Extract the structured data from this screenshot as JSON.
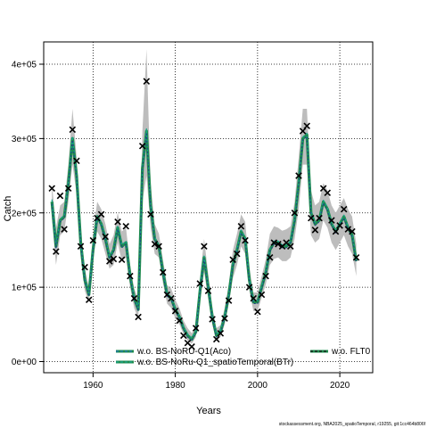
{
  "chart_data": {
    "type": "line",
    "xlabel": "Years",
    "ylabel": "Catch",
    "xlim": [
      1948,
      2028
    ],
    "ylim": [
      -15000,
      430000
    ],
    "x_ticks": [
      1960,
      1980,
      2000,
      2020
    ],
    "x_tick_labels": [
      "1960",
      "1980",
      "2000",
      "2020"
    ],
    "y_ticks": [
      0,
      100000,
      200000,
      300000,
      400000
    ],
    "y_tick_labels": [
      "0e+00",
      "1e+05",
      "2e+05",
      "3e+05",
      "4e+05"
    ],
    "grid": true,
    "legend_position": "bottom",
    "legend": [
      {
        "label": "w.o. BS-NoRU-Q1(Aco)",
        "color": "#1f77b4",
        "style": "dashed"
      },
      {
        "label": "w.o. BS-NoRu-Q1_spatioTemporal(BTr)",
        "color": "#17a589",
        "style": "dashed"
      },
      {
        "label": "w.o. FLT0",
        "color": "#111111",
        "style": "dashed"
      }
    ],
    "estimate_color": "#1e8a4c",
    "band_color": "#bdbdbd",
    "series": [
      {
        "name": "w.o. BS-NoRU-Q1(Aco)",
        "x": [
          1950,
          1951,
          1952,
          1953,
          1954,
          1955,
          1956,
          1957,
          1958,
          1959,
          1960,
          1961,
          1962,
          1963,
          1964,
          1965,
          1966,
          1967,
          1968,
          1969,
          1970,
          1971,
          1972,
          1973,
          1974,
          1975,
          1976,
          1977,
          1978,
          1979,
          1980,
          1981,
          1982,
          1983,
          1984,
          1985,
          1986,
          1987,
          1988,
          1989,
          1990,
          1991,
          1992,
          1993,
          1994,
          1995,
          1996,
          1997,
          1998,
          1999,
          2000,
          2001,
          2002,
          2003,
          2004,
          2005,
          2006,
          2007,
          2008,
          2009,
          2010,
          2011,
          2012,
          2013,
          2014,
          2015,
          2016,
          2017,
          2018,
          2019,
          2020,
          2021,
          2022,
          2023,
          2024
        ],
        "values": [
          215000,
          155000,
          190000,
          195000,
          240000,
          300000,
          250000,
          160000,
          110000,
          90000,
          150000,
          195000,
          185000,
          165000,
          140000,
          150000,
          180000,
          155000,
          160000,
          115000,
          85000,
          70000,
          260000,
          310000,
          210000,
          165000,
          155000,
          120000,
          90000,
          85000,
          70000,
          60000,
          45000,
          35000,
          30000,
          40000,
          95000,
          140000,
          100000,
          60000,
          35000,
          40000,
          60000,
          90000,
          130000,
          150000,
          175000,
          165000,
          110000,
          80000,
          80000,
          100000,
          120000,
          150000,
          160000,
          160000,
          155000,
          155000,
          160000,
          190000,
          240000,
          300000,
          305000,
          200000,
          185000,
          190000,
          215000,
          205000,
          185000,
          175000,
          185000,
          195000,
          180000,
          170000,
          135000
        ]
      },
      {
        "name": "w.o. BS-NoRu-Q1_spatioTemporal(BTr)",
        "x": [
          1950,
          1951,
          1952,
          1953,
          1954,
          1955,
          1956,
          1957,
          1958,
          1959,
          1960,
          1961,
          1962,
          1963,
          1964,
          1965,
          1966,
          1967,
          1968,
          1969,
          1970,
          1971,
          1972,
          1973,
          1974,
          1975,
          1976,
          1977,
          1978,
          1979,
          1980,
          1981,
          1982,
          1983,
          1984,
          1985,
          1986,
          1987,
          1988,
          1989,
          1990,
          1991,
          1992,
          1993,
          1994,
          1995,
          1996,
          1997,
          1998,
          1999,
          2000,
          2001,
          2002,
          2003,
          2004,
          2005,
          2006,
          2007,
          2008,
          2009,
          2010,
          2011,
          2012,
          2013,
          2014,
          2015,
          2016,
          2017,
          2018,
          2019,
          2020,
          2021,
          2022,
          2023,
          2024
        ],
        "values": [
          218000,
          158000,
          192000,
          197000,
          242000,
          303000,
          252000,
          162000,
          112000,
          92000,
          152000,
          197000,
          187000,
          167000,
          142000,
          152000,
          182000,
          157000,
          162000,
          117000,
          87000,
          72000,
          262000,
          313000,
          212000,
          167000,
          157000,
          122000,
          92000,
          87000,
          72000,
          62000,
          47000,
          37000,
          32000,
          42000,
          97000,
          142000,
          102000,
          62000,
          37000,
          42000,
          62000,
          92000,
          132000,
          152000,
          177000,
          167000,
          112000,
          82000,
          82000,
          102000,
          122000,
          152000,
          162000,
          162000,
          157000,
          157000,
          162000,
          192000,
          242000,
          302000,
          307000,
          202000,
          187000,
          192000,
          217000,
          207000,
          187000,
          177000,
          187000,
          197000,
          182000,
          172000,
          137000
        ]
      },
      {
        "name": "w.o. FLT0",
        "x": [
          1950,
          1951,
          1952,
          1953,
          1954,
          1955,
          1956,
          1957,
          1958,
          1959,
          1960,
          1961,
          1962,
          1963,
          1964,
          1965,
          1966,
          1967,
          1968,
          1969,
          1970,
          1971,
          1972,
          1973,
          1974,
          1975,
          1976,
          1977,
          1978,
          1979,
          1980,
          1981,
          1982,
          1983,
          1984,
          1985,
          1986,
          1987,
          1988,
          1989,
          1990,
          1991,
          1992,
          1993,
          1994,
          1995,
          1996,
          1997,
          1998,
          1999,
          2000,
          2001,
          2002,
          2003,
          2004,
          2005,
          2006,
          2007,
          2008,
          2009,
          2010,
          2011,
          2012,
          2013,
          2014,
          2015,
          2016,
          2017,
          2018,
          2019,
          2020,
          2021,
          2022,
          2023,
          2024
        ],
        "values": [
          212000,
          152000,
          188000,
          193000,
          238000,
          298000,
          248000,
          158000,
          108000,
          88000,
          148000,
          193000,
          183000,
          163000,
          138000,
          148000,
          178000,
          153000,
          158000,
          113000,
          83000,
          68000,
          258000,
          308000,
          208000,
          163000,
          153000,
          118000,
          88000,
          83000,
          68000,
          58000,
          43000,
          33000,
          28000,
          38000,
          93000,
          138000,
          98000,
          58000,
          33000,
          38000,
          58000,
          88000,
          128000,
          148000,
          173000,
          163000,
          108000,
          78000,
          78000,
          98000,
          118000,
          148000,
          158000,
          158000,
          153000,
          153000,
          158000,
          188000,
          238000,
          298000,
          303000,
          198000,
          183000,
          188000,
          213000,
          203000,
          183000,
          173000,
          183000,
          193000,
          178000,
          168000,
          133000
        ]
      }
    ],
    "band": {
      "x": [
        1950,
        1951,
        1952,
        1953,
        1954,
        1955,
        1956,
        1957,
        1958,
        1959,
        1960,
        1961,
        1962,
        1963,
        1964,
        1965,
        1966,
        1967,
        1968,
        1969,
        1970,
        1971,
        1972,
        1973,
        1974,
        1975,
        1976,
        1977,
        1978,
        1979,
        1980,
        1981,
        1982,
        1983,
        1984,
        1985,
        1986,
        1987,
        1988,
        1989,
        1990,
        1991,
        1992,
        1993,
        1994,
        1995,
        1996,
        1997,
        1998,
        1999,
        2000,
        2001,
        2002,
        2003,
        2004,
        2005,
        2006,
        2007,
        2008,
        2009,
        2010,
        2011,
        2012,
        2013,
        2014,
        2015,
        2016,
        2017,
        2018,
        2019,
        2020,
        2021,
        2022,
        2023,
        2024
      ],
      "lower": [
        195000,
        130000,
        170000,
        175000,
        215000,
        265000,
        225000,
        140000,
        95000,
        80000,
        135000,
        175000,
        165000,
        145000,
        125000,
        130000,
        160000,
        135000,
        140000,
        100000,
        72000,
        58000,
        215000,
        250000,
        180000,
        145000,
        140000,
        105000,
        78000,
        72000,
        58000,
        50000,
        37000,
        28000,
        24000,
        33000,
        80000,
        120000,
        85000,
        50000,
        28000,
        33000,
        50000,
        78000,
        112000,
        130000,
        155000,
        145000,
        95000,
        68000,
        68000,
        86000,
        104000,
        130000,
        138000,
        140000,
        135000,
        135000,
        140000,
        165000,
        205000,
        265000,
        265000,
        170000,
        160000,
        165000,
        190000,
        180000,
        160000,
        150000,
        160000,
        170000,
        155000,
        145000,
        115000
      ],
      "upper": [
        240000,
        180000,
        210000,
        215000,
        265000,
        340000,
        275000,
        180000,
        125000,
        100000,
        170000,
        215000,
        205000,
        185000,
        158000,
        170000,
        200000,
        175000,
        180000,
        130000,
        98000,
        85000,
        310000,
        420000,
        240000,
        185000,
        172000,
        137000,
        103000,
        98000,
        83000,
        72000,
        55000,
        45000,
        38000,
        49000,
        112000,
        165000,
        118000,
        72000,
        45000,
        49000,
        72000,
        105000,
        150000,
        172000,
        198000,
        188000,
        127000,
        93000,
        93000,
        115000,
        138000,
        172000,
        182000,
        180000,
        176000,
        178000,
        182000,
        215000,
        275000,
        340000,
        340000,
        230000,
        210000,
        215000,
        240000,
        230000,
        210000,
        200000,
        210000,
        220000,
        205000,
        195000,
        158000
      ]
    },
    "observed": {
      "x": [
        1950,
        1951,
        1952,
        1953,
        1954,
        1955,
        1956,
        1957,
        1958,
        1959,
        1960,
        1961,
        1962,
        1963,
        1964,
        1965,
        1966,
        1967,
        1968,
        1969,
        1970,
        1971,
        1972,
        1973,
        1974,
        1975,
        1976,
        1977,
        1978,
        1979,
        1980,
        1981,
        1982,
        1983,
        1984,
        1985,
        1986,
        1987,
        1988,
        1989,
        1990,
        1991,
        1992,
        1993,
        1994,
        1995,
        1996,
        1997,
        1998,
        1999,
        2000,
        2001,
        2002,
        2003,
        2004,
        2005,
        2006,
        2007,
        2008,
        2009,
        2010,
        2011,
        2012,
        2013,
        2014,
        2015,
        2016,
        2017,
        2018,
        2019,
        2020,
        2021,
        2022,
        2023,
        2024
      ],
      "values": [
        233000,
        148000,
        223000,
        178000,
        233000,
        312000,
        270000,
        155000,
        127000,
        83000,
        163000,
        193000,
        198000,
        168000,
        135000,
        138000,
        188000,
        137000,
        182000,
        115000,
        85000,
        60000,
        290000,
        377000,
        198000,
        158000,
        155000,
        120000,
        90000,
        85000,
        68000,
        55000,
        35000,
        25000,
        20000,
        45000,
        105000,
        155000,
        95000,
        57000,
        30000,
        38000,
        58000,
        82000,
        137000,
        145000,
        182000,
        163000,
        100000,
        85000,
        67000,
        90000,
        115000,
        140000,
        160000,
        158000,
        155000,
        160000,
        155000,
        200000,
        250000,
        310000,
        317000,
        193000,
        177000,
        193000,
        233000,
        227000,
        190000,
        175000,
        183000,
        205000,
        178000,
        175000,
        140000
      ]
    }
  },
  "footer": "stockassessment.org, NBA2025_spatioTemporal, r19255, git:1cc464b806f"
}
